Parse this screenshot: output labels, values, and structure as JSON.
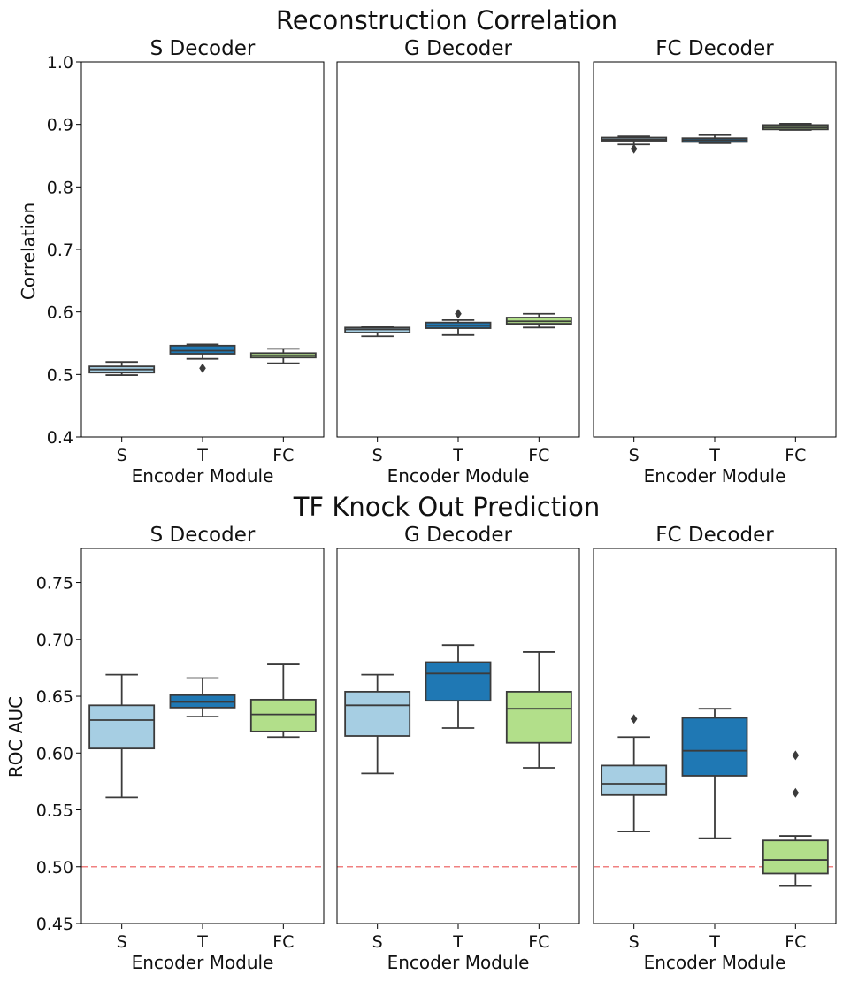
{
  "colors": {
    "S": "#a6cee3",
    "T": "#1f78b4",
    "FC": "#b2df8a",
    "line": "#3b3b3b",
    "chance_line": "#f08080"
  },
  "chart_data": [
    {
      "type": "box",
      "title": "Reconstruction Correlation",
      "ylabel": "Correlation",
      "ylim": [
        0.4,
        1.0
      ],
      "yticks": [
        "0.4",
        "0.5",
        "0.6",
        "0.7",
        "0.8",
        "0.9",
        "1.0"
      ],
      "xlabel": "Encoder Module",
      "categories": [
        "S",
        "T",
        "FC"
      ],
      "panels": [
        {
          "title": "S Decoder",
          "boxes": [
            {
              "category": "S",
              "whislo": 0.499,
              "q1": 0.503,
              "median": 0.508,
              "q3": 0.513,
              "whishi": 0.52,
              "fliers": []
            },
            {
              "category": "T",
              "whislo": 0.525,
              "q1": 0.533,
              "median": 0.538,
              "q3": 0.546,
              "whishi": 0.548,
              "fliers": [
                0.51
              ]
            },
            {
              "category": "FC",
              "whislo": 0.518,
              "q1": 0.527,
              "median": 0.53,
              "q3": 0.534,
              "whishi": 0.541,
              "fliers": []
            }
          ]
        },
        {
          "title": "G Decoder",
          "boxes": [
            {
              "category": "S",
              "whislo": 0.561,
              "q1": 0.567,
              "median": 0.572,
              "q3": 0.575,
              "whishi": 0.577,
              "fliers": []
            },
            {
              "category": "T",
              "whislo": 0.563,
              "q1": 0.574,
              "median": 0.578,
              "q3": 0.583,
              "whishi": 0.587,
              "fliers": [
                0.597
              ]
            },
            {
              "category": "FC",
              "whislo": 0.575,
              "q1": 0.581,
              "median": 0.585,
              "q3": 0.591,
              "whishi": 0.597,
              "fliers": []
            }
          ]
        },
        {
          "title": "FC Decoder",
          "boxes": [
            {
              "category": "S",
              "whislo": 0.868,
              "q1": 0.874,
              "median": 0.876,
              "q3": 0.879,
              "whishi": 0.881,
              "fliers": [
                0.861
              ]
            },
            {
              "category": "T",
              "whislo": 0.87,
              "q1": 0.872,
              "median": 0.875,
              "q3": 0.878,
              "whishi": 0.883,
              "fliers": []
            },
            {
              "category": "FC",
              "whislo": 0.891,
              "q1": 0.892,
              "median": 0.895,
              "q3": 0.899,
              "whishi": 0.901,
              "fliers": []
            }
          ]
        }
      ]
    },
    {
      "type": "box",
      "title": "TF Knock Out Prediction",
      "ylabel": "ROC AUC",
      "ylim": [
        0.45,
        0.78
      ],
      "yticks": [
        "0.45",
        "0.50",
        "0.55",
        "0.60",
        "0.65",
        "0.70",
        "0.75"
      ],
      "xlabel": "Encoder Module",
      "categories": [
        "S",
        "T",
        "FC"
      ],
      "reference_line": 0.5,
      "panels": [
        {
          "title": "S Decoder",
          "boxes": [
            {
              "category": "S",
              "whislo": 0.561,
              "q1": 0.604,
              "median": 0.629,
              "q3": 0.642,
              "whishi": 0.669,
              "fliers": []
            },
            {
              "category": "T",
              "whislo": 0.632,
              "q1": 0.64,
              "median": 0.645,
              "q3": 0.651,
              "whishi": 0.666,
              "fliers": []
            },
            {
              "category": "FC",
              "whislo": 0.614,
              "q1": 0.619,
              "median": 0.634,
              "q3": 0.647,
              "whishi": 0.678,
              "fliers": []
            }
          ]
        },
        {
          "title": "G Decoder",
          "boxes": [
            {
              "category": "S",
              "whislo": 0.582,
              "q1": 0.615,
              "median": 0.642,
              "q3": 0.654,
              "whishi": 0.669,
              "fliers": []
            },
            {
              "category": "T",
              "whislo": 0.622,
              "q1": 0.646,
              "median": 0.67,
              "q3": 0.68,
              "whishi": 0.695,
              "fliers": []
            },
            {
              "category": "FC",
              "whislo": 0.587,
              "q1": 0.609,
              "median": 0.639,
              "q3": 0.654,
              "whishi": 0.689,
              "fliers": []
            }
          ]
        },
        {
          "title": "FC Decoder",
          "boxes": [
            {
              "category": "S",
              "whislo": 0.531,
              "q1": 0.563,
              "median": 0.573,
              "q3": 0.589,
              "whishi": 0.614,
              "fliers": [
                0.63
              ]
            },
            {
              "category": "T",
              "whislo": 0.525,
              "q1": 0.58,
              "median": 0.602,
              "q3": 0.631,
              "whishi": 0.639,
              "fliers": []
            },
            {
              "category": "FC",
              "whislo": 0.483,
              "q1": 0.494,
              "median": 0.506,
              "q3": 0.523,
              "whishi": 0.527,
              "fliers": [
                0.565,
                0.598
              ]
            }
          ]
        }
      ]
    }
  ]
}
